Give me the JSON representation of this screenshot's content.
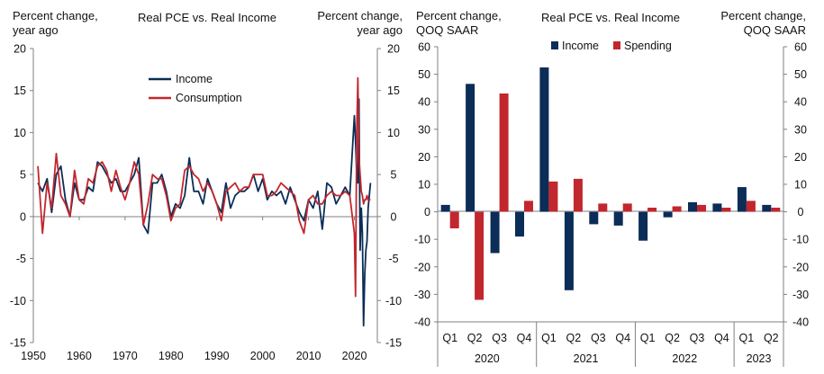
{
  "colors": {
    "income": "#0b2d57",
    "spending": "#c1272d",
    "axis": "#808080"
  },
  "chart_data": [
    {
      "type": "line",
      "title": "Real PCE vs. Real Income",
      "ylabel_left": [
        "Percent change,",
        "year ago"
      ],
      "ylabel_right": [
        "Percent change,",
        "year ago"
      ],
      "ylim": [
        -15,
        20
      ],
      "yticks": [
        -15,
        -10,
        -5,
        0,
        5,
        10,
        15,
        20
      ],
      "xlim": [
        1950,
        2025
      ],
      "xticks": [
        1950,
        1960,
        1970,
        1980,
        1990,
        2000,
        2010,
        2020
      ],
      "legend": [
        "Income",
        "Consumption"
      ],
      "series": [
        {
          "name": "Income",
          "x": [
            1951,
            1952,
            1953,
            1954,
            1955,
            1956,
            1957,
            1958,
            1959,
            1960,
            1961,
            1962,
            1963,
            1964,
            1965,
            1966,
            1967,
            1968,
            1969,
            1970,
            1971,
            1972,
            1973,
            1974,
            1975,
            1976,
            1977,
            1978,
            1979,
            1980,
            1981,
            1982,
            1983,
            1984,
            1985,
            1986,
            1987,
            1988,
            1989,
            1990,
            1991,
            1992,
            1993,
            1994,
            1995,
            1996,
            1997,
            1998,
            1999,
            2000,
            2001,
            2002,
            2003,
            2004,
            2005,
            2006,
            2007,
            2008,
            2009,
            2010,
            2011,
            2012,
            2013,
            2014,
            2015,
            2016,
            2017,
            2018,
            2019,
            2020,
            2020.25,
            2020.5,
            2020.75,
            2021,
            2021.25,
            2021.5,
            2021.75,
            2022,
            2022.25,
            2022.5,
            2022.75,
            2023,
            2023.5
          ],
          "values": [
            4,
            3,
            4.5,
            0.5,
            5,
            6,
            2,
            0,
            4,
            2,
            2,
            3.5,
            3,
            6.5,
            6,
            5,
            4,
            4.5,
            3,
            3,
            4,
            5,
            7,
            -1,
            -2,
            4,
            4,
            5,
            3,
            0,
            1.5,
            1,
            2.5,
            7,
            3,
            3,
            1.5,
            4.5,
            3,
            1.5,
            0.5,
            4,
            1,
            2.5,
            3,
            3,
            3.5,
            5,
            3,
            4.5,
            2,
            3,
            2.5,
            3,
            1.5,
            3.5,
            2,
            0.5,
            -0.5,
            2,
            1,
            3,
            -1.5,
            4,
            3.5,
            1.5,
            2.5,
            3.5,
            2.5,
            12,
            9,
            5,
            4,
            14,
            -4,
            1,
            -2,
            -13,
            -7,
            -4,
            -3,
            1,
            4
          ]
        },
        {
          "name": "Consumption",
          "x": [
            1951,
            1952,
            1953,
            1954,
            1955,
            1956,
            1957,
            1958,
            1959,
            1960,
            1961,
            1962,
            1963,
            1964,
            1965,
            1966,
            1967,
            1968,
            1969,
            1970,
            1971,
            1972,
            1973,
            1974,
            1975,
            1976,
            1977,
            1978,
            1979,
            1980,
            1981,
            1982,
            1983,
            1984,
            1985,
            1986,
            1987,
            1988,
            1989,
            1990,
            1991,
            1992,
            1993,
            1994,
            1995,
            1996,
            1997,
            1998,
            1999,
            2000,
            2001,
            2002,
            2003,
            2004,
            2005,
            2006,
            2007,
            2008,
            2009,
            2010,
            2011,
            2012,
            2013,
            2014,
            2015,
            2016,
            2017,
            2018,
            2019,
            2020,
            2020.25,
            2020.5,
            2020.75,
            2021,
            2021.25,
            2021.5,
            2021.75,
            2022,
            2022.25,
            2022.5,
            2022.75,
            2023,
            2023.5
          ],
          "values": [
            6,
            -2,
            4,
            1,
            7.5,
            2.5,
            1.5,
            0,
            5.5,
            2,
            1.5,
            4.5,
            4,
            6,
            6.5,
            5.5,
            3,
            5.5,
            3.5,
            2,
            4,
            6.5,
            5,
            -1,
            1.5,
            5,
            4.5,
            4.5,
            2.5,
            -0.5,
            1,
            1.5,
            5.5,
            6,
            5,
            4.5,
            3,
            4,
            3,
            1.5,
            -0.5,
            3,
            3.5,
            4,
            3,
            3.5,
            3.5,
            5,
            5,
            5,
            2.5,
            2.5,
            3,
            4,
            3.5,
            3,
            2.5,
            -0.5,
            -2,
            2,
            2.5,
            1.5,
            1.5,
            2.5,
            3,
            2.5,
            2.5,
            3,
            2.5,
            -2,
            -9.5,
            10,
            16.5,
            7,
            5,
            3,
            2.5,
            1.5,
            2,
            2,
            2.5,
            2,
            2
          ]
        }
      ]
    },
    {
      "type": "bar",
      "title": "Real PCE vs. Real Income",
      "ylabel_left": [
        "Percent change,",
        "QOQ SAAR"
      ],
      "ylabel_right": [
        "Percent change,",
        "QOQ SAAR"
      ],
      "ylim": [
        -40,
        60
      ],
      "yticks": [
        -40,
        -30,
        -20,
        -10,
        0,
        10,
        20,
        30,
        40,
        50,
        60
      ],
      "categories": [
        "Q1",
        "Q2",
        "Q3",
        "Q4",
        "Q1",
        "Q2",
        "Q3",
        "Q4",
        "Q1",
        "Q2",
        "Q3",
        "Q4",
        "Q1",
        "Q2"
      ],
      "years": [
        {
          "label": "2020",
          "quarters": 4
        },
        {
          "label": "2021",
          "quarters": 4
        },
        {
          "label": "2022",
          "quarters": 4
        },
        {
          "label": "2023",
          "quarters": 2
        }
      ],
      "legend": [
        "Income",
        "Spending"
      ],
      "series": [
        {
          "name": "Income",
          "values": [
            2.5,
            46.5,
            -15,
            -9,
            52.5,
            -28.5,
            -4.5,
            -5,
            -10.5,
            -2,
            3.5,
            3,
            9,
            2.5
          ]
        },
        {
          "name": "Spending",
          "values": [
            -6,
            -32,
            43,
            4,
            11,
            12,
            3,
            3,
            1.5,
            2,
            2.5,
            1.5,
            4,
            1.5
          ]
        }
      ]
    }
  ]
}
